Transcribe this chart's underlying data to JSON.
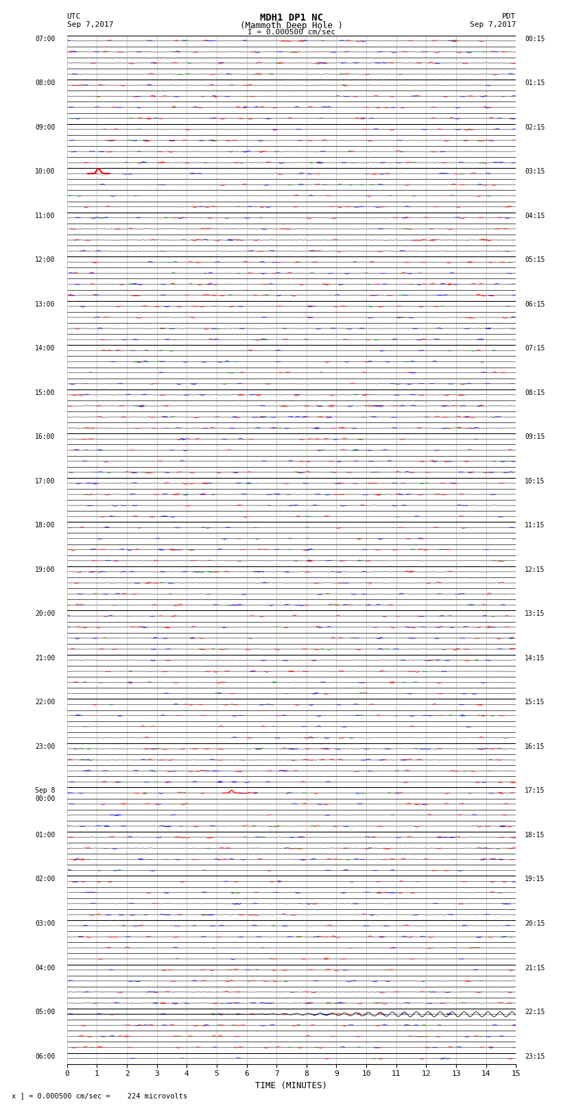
{
  "title_line1": "MDH1 DP1 NC",
  "title_line2": "(Mammoth Deep Hole )",
  "title_line3": "I = 0.000500 cm/sec",
  "label_utc": "UTC",
  "label_date_left": "Sep 7,2017",
  "label_pdt": "PDT",
  "label_date_right": "Sep 7,2017",
  "xlabel": "TIME (MINUTES)",
  "footer": "x ] = 0.000500 cm/sec =    224 microvolts",
  "num_rows": 140,
  "minutes_per_row": 15,
  "bg_color": "#ffffff",
  "trace_color": "#000000",
  "grid_color": "#aaaaaa",
  "spike_color_red": "#ff0000",
  "spike_color_blue": "#0000ff",
  "spike_color_green": "#008800",
  "hour_labels_left": {
    "0": "07:00",
    "4": "08:00",
    "8": "09:00",
    "12": "10:00",
    "16": "11:00",
    "20": "12:00",
    "24": "13:00",
    "28": "14:00",
    "32": "15:00",
    "36": "16:00",
    "40": "17:00",
    "44": "18:00",
    "48": "19:00",
    "52": "20:00",
    "56": "21:00",
    "60": "22:00",
    "64": "23:00",
    "68": "Sep 8\n00:00",
    "72": "01:00",
    "76": "02:00",
    "80": "03:00",
    "84": "04:00",
    "88": "05:00",
    "92": "06:00"
  },
  "hour_labels_right": {
    "0": "00:15",
    "4": "01:15",
    "8": "02:15",
    "12": "03:15",
    "16": "04:15",
    "20": "05:15",
    "24": "06:15",
    "28": "07:15",
    "32": "08:15",
    "36": "09:15",
    "40": "10:15",
    "44": "11:15",
    "48": "12:15",
    "52": "13:15",
    "56": "14:15",
    "60": "15:15",
    "64": "16:15",
    "68": "17:15",
    "72": "18:15",
    "76": "19:15",
    "80": "20:15",
    "84": "21:15",
    "88": "22:15",
    "92": "23:15"
  }
}
